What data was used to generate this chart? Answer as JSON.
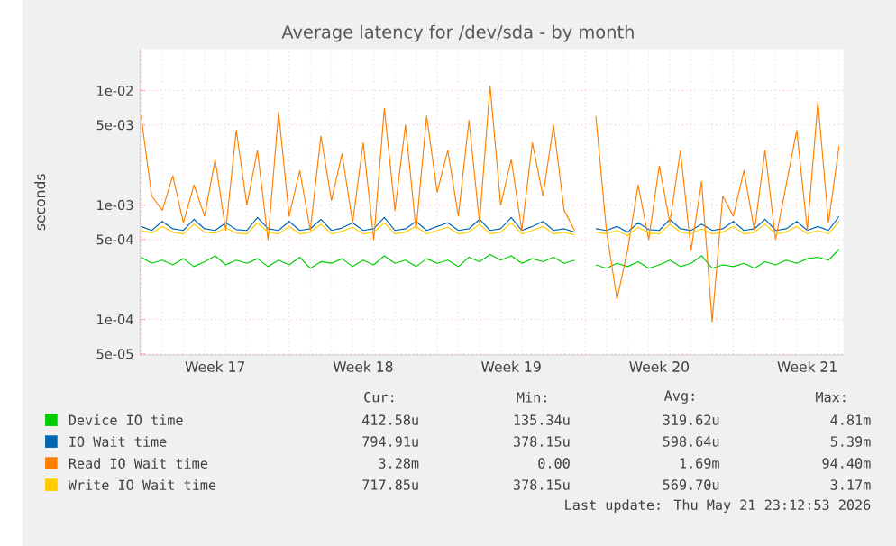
{
  "chart_data": {
    "type": "line",
    "title": "Average latency for /dev/sda - by month",
    "ylabel": "seconds",
    "log": "y",
    "grid": true,
    "legend": "bottom",
    "marker": "none",
    "line_style": "solid",
    "ylim": [
      4.9e-05,
      0.023
    ],
    "yticks": [
      {
        "value": 5e-05,
        "label": "5e-05"
      },
      {
        "value": 0.0001,
        "label": "1e-04"
      },
      {
        "value": 0.0005,
        "label": "5e-04"
      },
      {
        "value": 0.001,
        "label": "1e-03"
      },
      {
        "value": 0.005,
        "label": "5e-03"
      },
      {
        "value": 0.01,
        "label": "1e-02"
      }
    ],
    "categories": [
      null,
      null,
      null,
      null,
      null,
      null,
      null,
      "Week 17",
      null,
      null,
      null,
      null,
      null,
      null,
      null,
      null,
      null,
      null,
      null,
      null,
      null,
      "Week 18",
      null,
      null,
      null,
      null,
      null,
      null,
      null,
      null,
      null,
      null,
      null,
      null,
      null,
      "Week 19",
      null,
      null,
      null,
      null,
      null,
      null,
      null,
      null,
      null,
      null,
      null,
      null,
      null,
      "Week 20",
      null,
      null,
      null,
      null,
      null,
      null,
      null,
      null,
      null,
      null,
      null,
      null,
      null,
      "Week 21",
      null,
      null,
      null
    ],
    "series": [
      {
        "name": "Device IO time",
        "color": "#00cc00",
        "values": [
          0.00035,
          0.00031,
          0.00033,
          0.0003,
          0.00034,
          0.00029,
          0.00032,
          0.00036,
          0.0003,
          0.00033,
          0.00031,
          0.00034,
          0.00029,
          0.00033,
          0.0003,
          0.00035,
          0.00028,
          0.00032,
          0.00031,
          0.00034,
          0.00029,
          0.00033,
          0.0003,
          0.00036,
          0.00031,
          0.00033,
          0.00029,
          0.00034,
          0.00031,
          0.00033,
          0.00029,
          0.00035,
          0.00032,
          0.00037,
          0.00033,
          0.00036,
          0.00031,
          0.00034,
          0.00032,
          0.00035,
          0.00031,
          0.00033,
          null,
          0.0003,
          0.00028,
          0.00031,
          0.00029,
          0.00032,
          0.00028,
          0.0003,
          0.00033,
          0.00029,
          0.00031,
          0.00036,
          0.00028,
          0.0003,
          0.00029,
          0.00031,
          0.00028,
          0.00032,
          0.0003,
          0.00033,
          0.00031,
          0.00034,
          0.00035,
          0.00033,
          0.00041
        ]
      },
      {
        "name": "IO Wait time",
        "color": "#0066b3",
        "values": [
          0.00065,
          0.0006,
          0.00072,
          0.00062,
          0.0006,
          0.00075,
          0.00062,
          0.0006,
          0.0007,
          0.00061,
          0.0006,
          0.00078,
          0.00062,
          0.0006,
          0.00072,
          0.0006,
          0.00062,
          0.00075,
          0.0006,
          0.00063,
          0.0007,
          0.0006,
          0.00062,
          0.00078,
          0.0006,
          0.00062,
          0.00072,
          0.0006,
          0.00065,
          0.0007,
          0.0006,
          0.00062,
          0.00075,
          0.0006,
          0.00062,
          0.00078,
          0.0006,
          0.00065,
          0.00072,
          0.0006,
          0.00062,
          0.00058,
          null,
          0.00062,
          0.0006,
          0.00065,
          0.00058,
          0.0007,
          0.00061,
          0.0006,
          0.00075,
          0.00062,
          0.0006,
          0.00068,
          0.0006,
          0.00062,
          0.00072,
          0.0006,
          0.00062,
          0.00075,
          0.0006,
          0.00062,
          0.00072,
          0.0006,
          0.00065,
          0.0006,
          0.000795
        ]
      },
      {
        "name": "Read IO Wait time",
        "color": "#ff8000",
        "values": [
          0.006,
          0.0012,
          0.0009,
          0.0018,
          0.0007,
          0.0015,
          0.0008,
          0.0025,
          0.0006,
          0.0045,
          0.001,
          0.003,
          0.0005,
          0.0065,
          0.0008,
          0.002,
          0.0006,
          0.004,
          0.0011,
          0.0028,
          0.0007,
          0.0035,
          0.0005,
          0.007,
          0.0009,
          0.005,
          0.0006,
          0.006,
          0.0013,
          0.003,
          0.0008,
          0.0055,
          0.0007,
          0.011,
          0.001,
          0.0025,
          0.0006,
          0.0035,
          0.0012,
          0.005,
          0.0009,
          0.0006,
          null,
          0.006,
          0.0006,
          0.00015,
          0.0004,
          0.0015,
          0.0005,
          0.0022,
          0.0007,
          0.003,
          0.0004,
          0.0016,
          9.6e-05,
          0.0012,
          0.0008,
          0.002,
          0.0006,
          0.003,
          0.0005,
          0.0015,
          0.0045,
          0.0006,
          0.008,
          0.0007,
          0.00328
        ]
      },
      {
        "name": "Write IO Wait time",
        "color": "#ffcc00",
        "values": [
          0.0006,
          0.00057,
          0.00065,
          0.00058,
          0.00056,
          0.00068,
          0.00058,
          0.00057,
          0.00063,
          0.00057,
          0.00056,
          0.0007,
          0.00058,
          0.00056,
          0.00065,
          0.00056,
          0.00058,
          0.00068,
          0.00056,
          0.00059,
          0.00064,
          0.00056,
          0.00058,
          0.0007,
          0.00056,
          0.00058,
          0.00065,
          0.00056,
          0.0006,
          0.00064,
          0.00056,
          0.00058,
          0.00068,
          0.00056,
          0.00058,
          0.0007,
          0.00056,
          0.0006,
          0.00065,
          0.00056,
          0.00058,
          0.00055,
          null,
          0.00058,
          0.00056,
          0.0006,
          0.00054,
          0.00064,
          0.00057,
          0.00056,
          0.00068,
          0.00058,
          0.00056,
          0.00062,
          0.00056,
          0.00058,
          0.00065,
          0.00056,
          0.00058,
          0.00068,
          0.00056,
          0.00058,
          0.00065,
          0.00056,
          0.0006,
          0.00056,
          0.000718
        ]
      }
    ],
    "annotations": [
      "Cur:",
      "Min:",
      "Avg:",
      "Max:",
      "412.58u",
      "135.34u",
      "319.62u",
      "4.81m",
      "794.91u",
      "378.15u",
      "598.64u",
      "5.39m",
      "3.28m",
      "0.00",
      "1.69m",
      "94.40m",
      "717.85u",
      "378.15u",
      "569.70u",
      "3.17m",
      "Last update: Thu May 21 23:12:53 2026"
    ]
  }
}
